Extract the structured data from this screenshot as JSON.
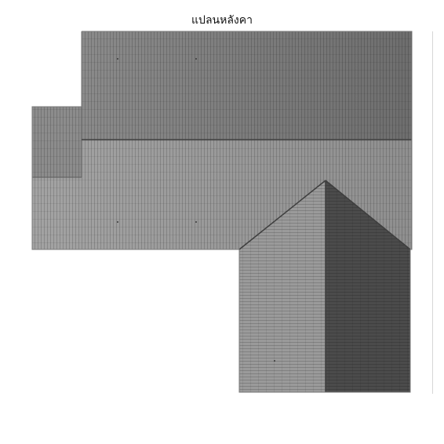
{
  "title": "แปลนหลังคา"
}
